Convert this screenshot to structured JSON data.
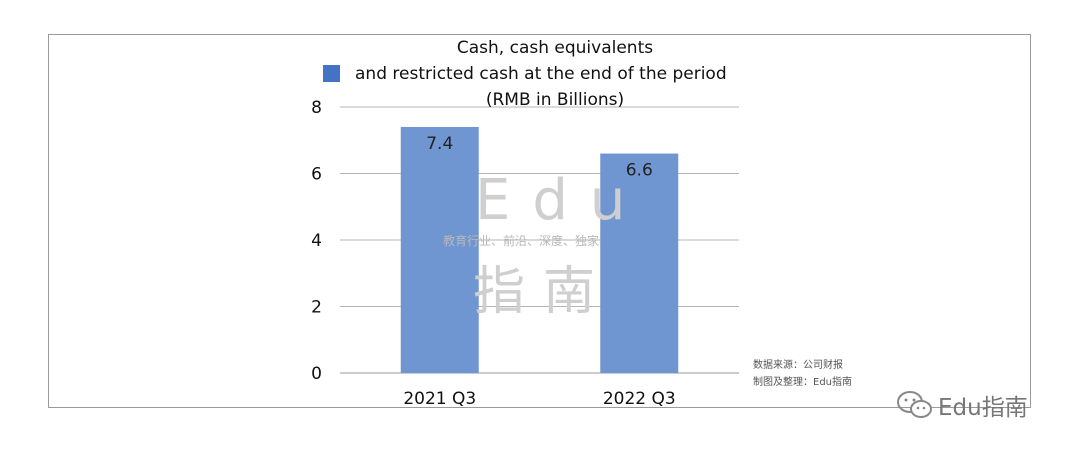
{
  "chart_data": {
    "type": "bar",
    "title_lines": [
      "Cash, cash equivalents",
      "and restricted cash at the end of the period",
      "(RMB in Billions)"
    ],
    "categories": [
      "2021 Q3",
      "2022 Q3"
    ],
    "series": [
      {
        "values": [
          7.4,
          6.6
        ]
      }
    ],
    "data_labels": [
      "7.4",
      "6.6"
    ],
    "ylim": [
      0,
      8
    ],
    "yticks": [
      "0",
      "2",
      "4",
      "6",
      "8"
    ],
    "grid": true,
    "legend": "top-left",
    "bar_color": "#7096d2",
    "legend_color": "#4472c4"
  },
  "watermark": {
    "latin": "Edu",
    "cjk": "指南",
    "tagline": "教育行业、前沿、深度、独家"
  },
  "source_note": {
    "line1": "数据来源：公司财报",
    "line2": "制图及整理：Edu指南"
  },
  "brand": {
    "icon": "wechat-icon",
    "label": "Edu指南"
  }
}
